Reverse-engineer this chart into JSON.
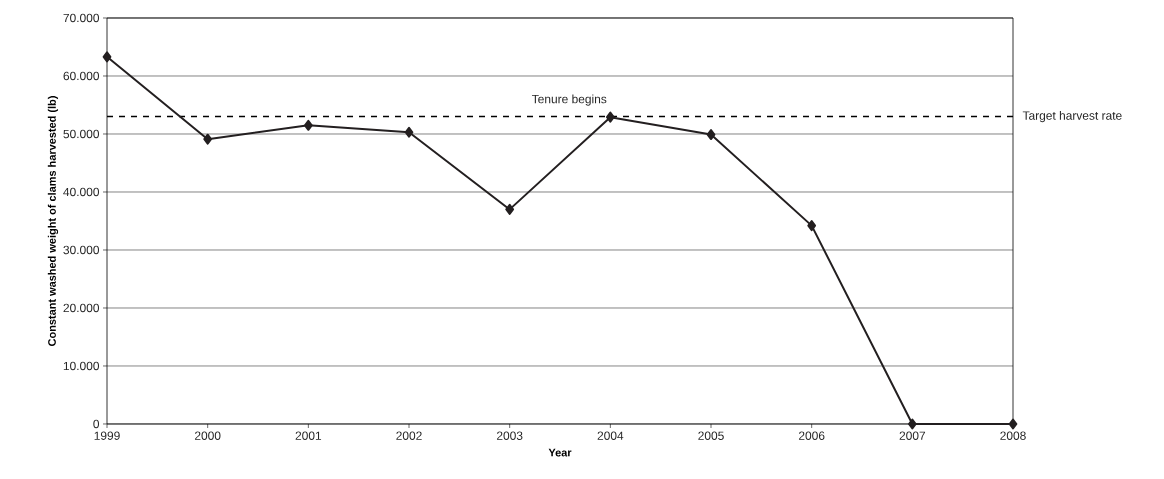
{
  "chart_data": {
    "type": "line",
    "xlabel": "Year",
    "ylabel": "Constant washed weight of clams harvested (lb)",
    "x": [
      1999,
      2000,
      2001,
      2002,
      2003,
      2004,
      2005,
      2006,
      2007,
      2008
    ],
    "values": [
      63300,
      49100,
      51500,
      50300,
      37000,
      52900,
      49900,
      34200,
      0,
      0
    ],
    "color": "#231f20",
    "marker": "diamond",
    "line_style": "solid",
    "xlim": [
      1999,
      2008
    ],
    "xticks": [
      1999,
      2000,
      2001,
      2002,
      2003,
      2004,
      2005,
      2006,
      2007,
      2008
    ],
    "ylim": [
      0,
      70000
    ],
    "yticks": [
      {
        "value": 0,
        "label": "0"
      },
      {
        "value": 10000,
        "label": "10.000"
      },
      {
        "value": 20000,
        "label": "20.000"
      },
      {
        "value": 30000,
        "label": "30.000"
      },
      {
        "value": 40000,
        "label": "40.000"
      },
      {
        "value": 50000,
        "label": "50.000"
      },
      {
        "value": 60000,
        "label": "60.000"
      },
      {
        "value": 70000,
        "label": "70.000"
      }
    ],
    "grid": "y",
    "ref_lines": [
      {
        "axis": "y",
        "value": 53000,
        "label": "Target harvest rate",
        "line_style": "dashed",
        "color": "#000000"
      }
    ],
    "annotations": [
      {
        "text": "Tenure begins",
        "x": 2004,
        "y": 52900
      }
    ]
  }
}
